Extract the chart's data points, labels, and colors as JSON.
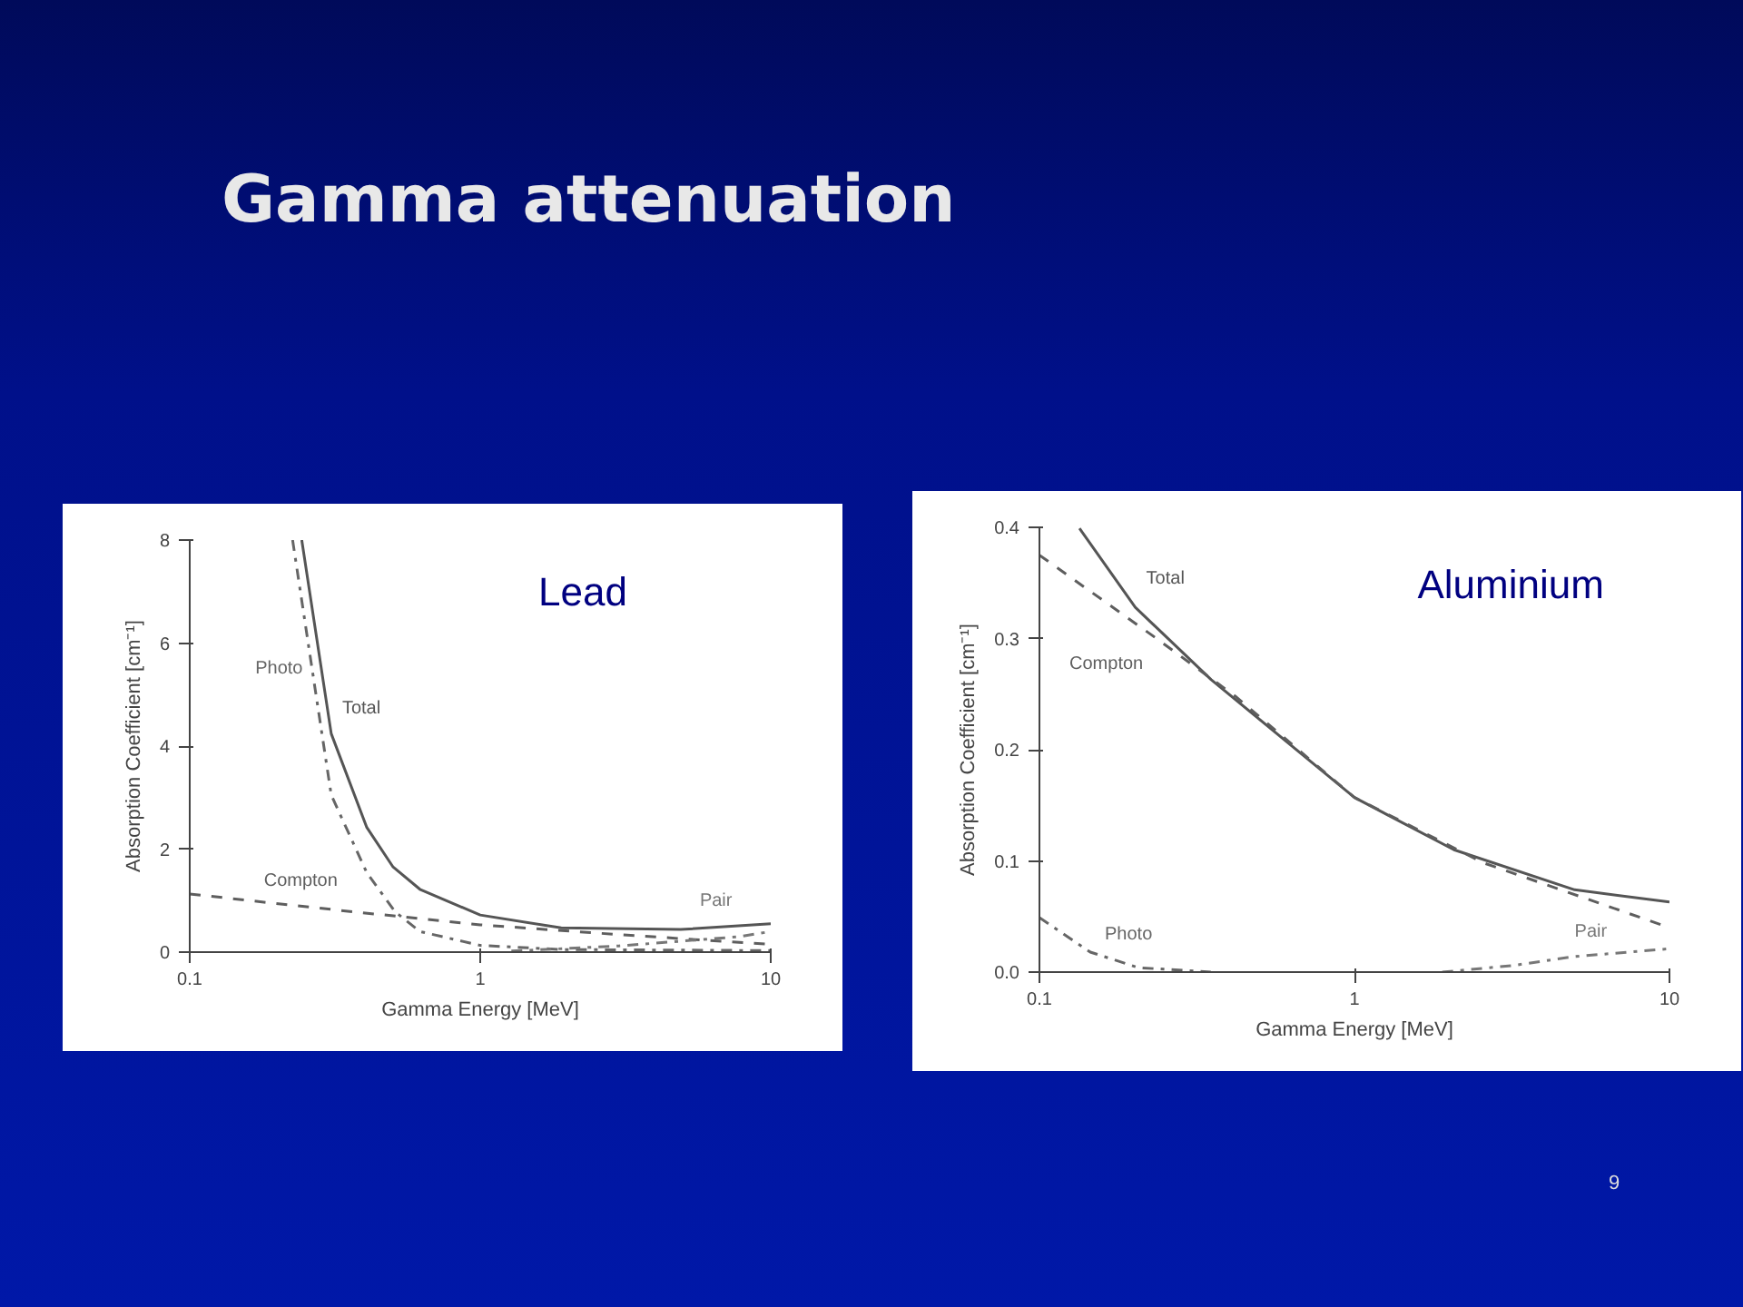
{
  "chart_data": [
    {
      "type": "line",
      "title": "Lead",
      "xlabel": "Gamma Energy [MeV]",
      "ylabel": "Absorption Coefficient [cm⁻¹]",
      "log": "x",
      "grid": false,
      "xlim": [
        0.1,
        10
      ],
      "ylim": [
        0,
        8
      ],
      "xticks": [
        0.1,
        1,
        10
      ],
      "yticks": [
        0,
        2,
        4,
        6,
        8
      ],
      "annotations": [
        "Gamma attenuation"
      ],
      "series": [
        {
          "name": "Total",
          "color": "#555555",
          "line_style": "solid",
          "x": [
            0.243,
            0.307,
            0.407,
            0.5,
            0.62,
            1,
            1.9,
            4.9,
            10
          ],
          "values": [
            8,
            4.24,
            2.42,
            1.66,
            1.22,
            0.72,
            0.47,
            0.44,
            0.55
          ]
        },
        {
          "name": "Photo",
          "color": "#666666",
          "line_style": "dashdot",
          "x": [
            0.226,
            0.267,
            0.307,
            0.407,
            0.51,
            0.62,
            1,
            1.9,
            10
          ],
          "values": [
            8,
            5.3,
            3.05,
            1.54,
            0.78,
            0.4,
            0.13,
            0.05,
            0.03
          ]
        },
        {
          "name": "Compton",
          "color": "#5e5e5e",
          "line_style": "dashed",
          "x": [
            0.1,
            0.18,
            0.37,
            1,
            3,
            10
          ],
          "values": [
            1.13,
            0.97,
            0.78,
            0.53,
            0.34,
            0.15
          ]
        },
        {
          "name": "Pair",
          "color": "#777777",
          "line_style": "dashdot",
          "x": [
            1.28,
            3,
            7.8,
            10
          ],
          "values": [
            0.02,
            0.12,
            0.3,
            0.4
          ]
        }
      ]
    },
    {
      "type": "line",
      "title": "Aluminium",
      "xlabel": "Gamma Energy [MeV]",
      "ylabel": "Absorption Coefficient [cm⁻¹]",
      "log": "x",
      "grid": false,
      "xlim": [
        0.1,
        10
      ],
      "ylim": [
        0,
        0.4
      ],
      "xticks": [
        0.1,
        1,
        10
      ],
      "yticks": [
        {
          "value": 0,
          "label": "0.0"
        },
        0.1,
        0.2,
        0.3,
        0.4
      ],
      "annotations": [
        "9"
      ],
      "series": [
        {
          "name": "Total",
          "color": "#555555",
          "line_style": "solid",
          "x": [
            0.134,
            0.2015,
            0.351,
            1,
            2.07,
            5,
            10
          ],
          "values": [
            0.399,
            0.328,
            0.263,
            0.157,
            0.11,
            0.074,
            0.063
          ]
        },
        {
          "name": "Compton",
          "color": "#5e5e5e",
          "line_style": "dashed",
          "x": [
            0.1,
            0.225,
            0.419,
            1,
            2.58,
            10
          ],
          "values": [
            0.375,
            0.304,
            0.248,
            0.157,
            0.098,
            0.04
          ]
        },
        {
          "name": "Photo",
          "color": "#666666",
          "line_style": "dashdot",
          "x": [
            0.1,
            0.145,
            0.206,
            0.35
          ],
          "values": [
            0.049,
            0.018,
            0.004,
            0
          ]
        },
        {
          "name": "Pair",
          "color": "#777777",
          "line_style": "dashdot",
          "x": [
            1.9,
            3.2,
            5,
            10
          ],
          "values": [
            0,
            0.006,
            0.014,
            0.021
          ]
        }
      ]
    }
  ]
}
